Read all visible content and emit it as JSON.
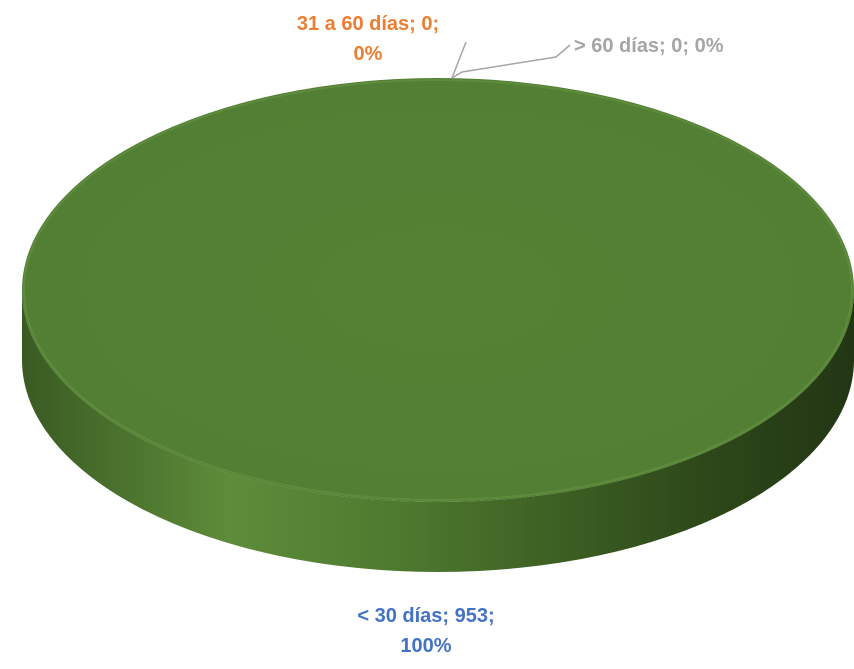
{
  "chart_data": {
    "type": "pie",
    "style": "3d",
    "categories": [
      "< 30 días",
      "31 a 60 días",
      "> 60 días"
    ],
    "values": [
      953,
      0,
      0
    ],
    "percents": [
      "100%",
      "0%",
      "0%"
    ],
    "colors": [
      "#548235",
      "#ed7d31",
      "#a5a5a5"
    ],
    "label_colors": [
      "#4472c4",
      "#ed7d31",
      "#a5a5a5"
    ],
    "data_labels": [
      {
        "line1": "< 30 días; 953;",
        "line2": "100%"
      },
      {
        "line1": "31 a 60 días; 0;",
        "line2": "0%"
      },
      {
        "line1": "> 60 días; 0; 0%",
        "line2": ""
      }
    ],
    "title": "",
    "legend": "none"
  }
}
